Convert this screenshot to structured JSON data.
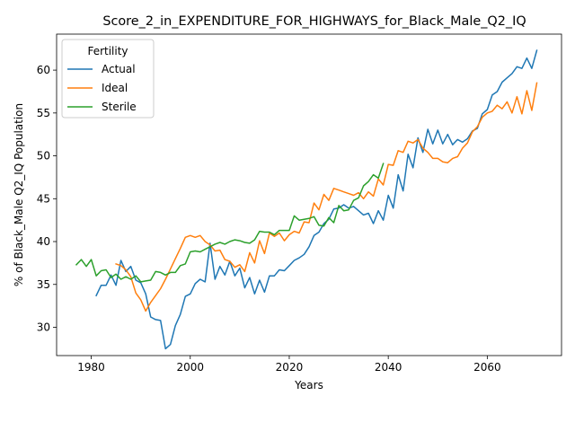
{
  "chart_data": {
    "type": "line",
    "title": "Score_2_in_EXPENDITURE_FOR_HIGHWAYS_for_Black_Male_Q2_IQ",
    "xlabel": "Years",
    "ylabel": "% of Black_Male Q2_IQ Population",
    "xlim": [
      1973,
      2075
    ],
    "ylim": [
      26.7,
      64.2
    ],
    "xticks": [
      1980,
      2000,
      2020,
      2040,
      2060
    ],
    "yticks": [
      30,
      35,
      40,
      45,
      50,
      55,
      60
    ],
    "grid": false,
    "legend": {
      "title": "Fertility",
      "placement": "upper-left"
    },
    "series": [
      {
        "name": "Actual",
        "color": "#1f77b4",
        "x": [
          1981,
          1982,
          1983,
          1984,
          1985,
          1986,
          1987,
          1988,
          1989,
          1990,
          1991,
          1992,
          1993,
          1994,
          1995,
          1996,
          1997,
          1998,
          1999,
          2000,
          2001,
          2002,
          2003,
          2004,
          2005,
          2006,
          2007,
          2008,
          2009,
          2010,
          2011,
          2012,
          2013,
          2014,
          2015,
          2016,
          2017,
          2018,
          2019,
          2020,
          2021,
          2022,
          2023,
          2024,
          2025,
          2026,
          2027,
          2028,
          2029,
          2030,
          2031,
          2032,
          2033,
          2034,
          2035,
          2036,
          2037,
          2038,
          2039,
          2040,
          2041,
          2042,
          2043,
          2044,
          2045,
          2046,
          2047,
          2048,
          2049,
          2050,
          2051,
          2052,
          2053,
          2054,
          2055,
          2056,
          2057,
          2058,
          2059,
          2060,
          2061,
          2062,
          2063,
          2064,
          2065,
          2066,
          2067,
          2068,
          2069,
          2070
        ],
        "values": [
          33.7,
          34.9,
          34.9,
          36.1,
          34.9,
          37.8,
          36.5,
          37.1,
          35.5,
          35.2,
          33.9,
          31.2,
          30.9,
          30.8,
          27.5,
          28.0,
          30.2,
          31.5,
          33.6,
          33.9,
          35.1,
          35.6,
          35.3,
          39.8,
          35.6,
          37.1,
          36.1,
          37.7,
          36.0,
          36.9,
          34.6,
          35.8,
          33.9,
          35.5,
          34.1,
          36.0,
          36.0,
          36.7,
          36.6,
          37.2,
          37.8,
          38.1,
          38.5,
          39.4,
          40.7,
          41.1,
          42.1,
          42.6,
          43.8,
          43.9,
          44.3,
          43.9,
          44.1,
          43.6,
          43.1,
          43.3,
          42.1,
          43.6,
          42.5,
          45.4,
          43.9,
          47.8,
          45.9,
          50.2,
          48.6,
          52.1,
          50.4,
          53.1,
          51.4,
          53.0,
          51.4,
          52.5,
          51.3,
          51.9,
          51.6,
          52.0,
          52.9,
          53.2,
          54.9,
          55.4,
          57.1,
          57.5,
          58.6,
          59.1,
          59.6,
          60.4,
          60.2,
          61.4,
          60.2,
          62.3
        ]
      },
      {
        "name": "Ideal",
        "color": "#ff7f0e",
        "x": [
          1985,
          1986,
          1987,
          1988,
          1989,
          1990,
          1991,
          1992,
          1993,
          1994,
          1995,
          1996,
          1997,
          1998,
          1999,
          2000,
          2001,
          2002,
          2003,
          2004,
          2005,
          2006,
          2007,
          2008,
          2009,
          2010,
          2011,
          2012,
          2013,
          2014,
          2015,
          2016,
          2017,
          2018,
          2019,
          2020,
          2021,
          2022,
          2023,
          2024,
          2025,
          2026,
          2027,
          2028,
          2029,
          2030,
          2031,
          2032,
          2033,
          2034,
          2035,
          2036,
          2037,
          2038,
          2039,
          2040,
          2041,
          2042,
          2043,
          2044,
          2045,
          2046,
          2047,
          2048,
          2049,
          2050,
          2051,
          2052,
          2053,
          2054,
          2055,
          2056,
          2057,
          2058,
          2059,
          2060,
          2061,
          2062,
          2063,
          2064,
          2065,
          2066,
          2067,
          2068,
          2069,
          2070
        ],
        "values": [
          37.4,
          37.2,
          36.7,
          35.9,
          34.0,
          33.2,
          31.9,
          32.9,
          33.7,
          34.5,
          35.6,
          36.8,
          38.0,
          39.2,
          40.5,
          40.7,
          40.5,
          40.7,
          40.0,
          39.6,
          38.9,
          39.0,
          37.9,
          37.7,
          37.0,
          37.3,
          36.5,
          38.7,
          37.5,
          40.1,
          38.6,
          41.0,
          40.6,
          41.0,
          40.1,
          40.8,
          41.2,
          41.0,
          42.3,
          42.2,
          44.5,
          43.7,
          45.5,
          44.8,
          46.2,
          46.0,
          45.8,
          45.6,
          45.4,
          45.7,
          45.0,
          45.8,
          45.3,
          47.3,
          46.6,
          49.0,
          48.9,
          50.6,
          50.4,
          51.7,
          51.5,
          51.9,
          50.9,
          50.4,
          49.7,
          49.7,
          49.3,
          49.2,
          49.7,
          49.9,
          50.9,
          51.5,
          52.8,
          53.4,
          54.5,
          55.0,
          55.2,
          55.9,
          55.5,
          56.3,
          55.0,
          56.9,
          54.9,
          57.6,
          55.3,
          58.5
        ]
      },
      {
        "name": "Sterile",
        "color": "#2ca02c",
        "x": [
          1977,
          1978,
          1979,
          1980,
          1981,
          1982,
          1983,
          1984,
          1985,
          1986,
          1987,
          1988,
          1989,
          1990,
          1991,
          1992,
          1993,
          1994,
          1995,
          1996,
          1997,
          1998,
          1999,
          2000,
          2001,
          2002,
          2003,
          2004,
          2005,
          2006,
          2007,
          2008,
          2009,
          2010,
          2011,
          2012,
          2013,
          2014,
          2015,
          2016,
          2017,
          2018,
          2019,
          2020,
          2021,
          2022,
          2023,
          2024,
          2025,
          2026,
          2027,
          2028,
          2029,
          2030,
          2031,
          2032,
          2033,
          2034,
          2035,
          2036,
          2037,
          2038,
          2039
        ],
        "values": [
          37.3,
          37.9,
          37.1,
          37.9,
          36.0,
          36.6,
          36.7,
          35.8,
          36.2,
          35.6,
          35.9,
          35.6,
          36.0,
          35.3,
          35.4,
          35.5,
          36.5,
          36.4,
          36.1,
          36.4,
          36.4,
          37.2,
          37.4,
          38.8,
          38.9,
          38.8,
          39.1,
          39.4,
          39.7,
          39.9,
          39.7,
          40.0,
          40.2,
          40.1,
          39.9,
          39.8,
          40.2,
          41.2,
          41.1,
          41.1,
          40.8,
          41.3,
          41.3,
          41.3,
          43.0,
          42.5,
          42.6,
          42.7,
          42.9,
          41.9,
          41.8,
          42.8,
          42.2,
          44.2,
          43.6,
          43.7,
          44.8,
          45.1,
          46.5,
          47.0,
          47.8,
          47.4,
          49.1
        ]
      }
    ]
  }
}
